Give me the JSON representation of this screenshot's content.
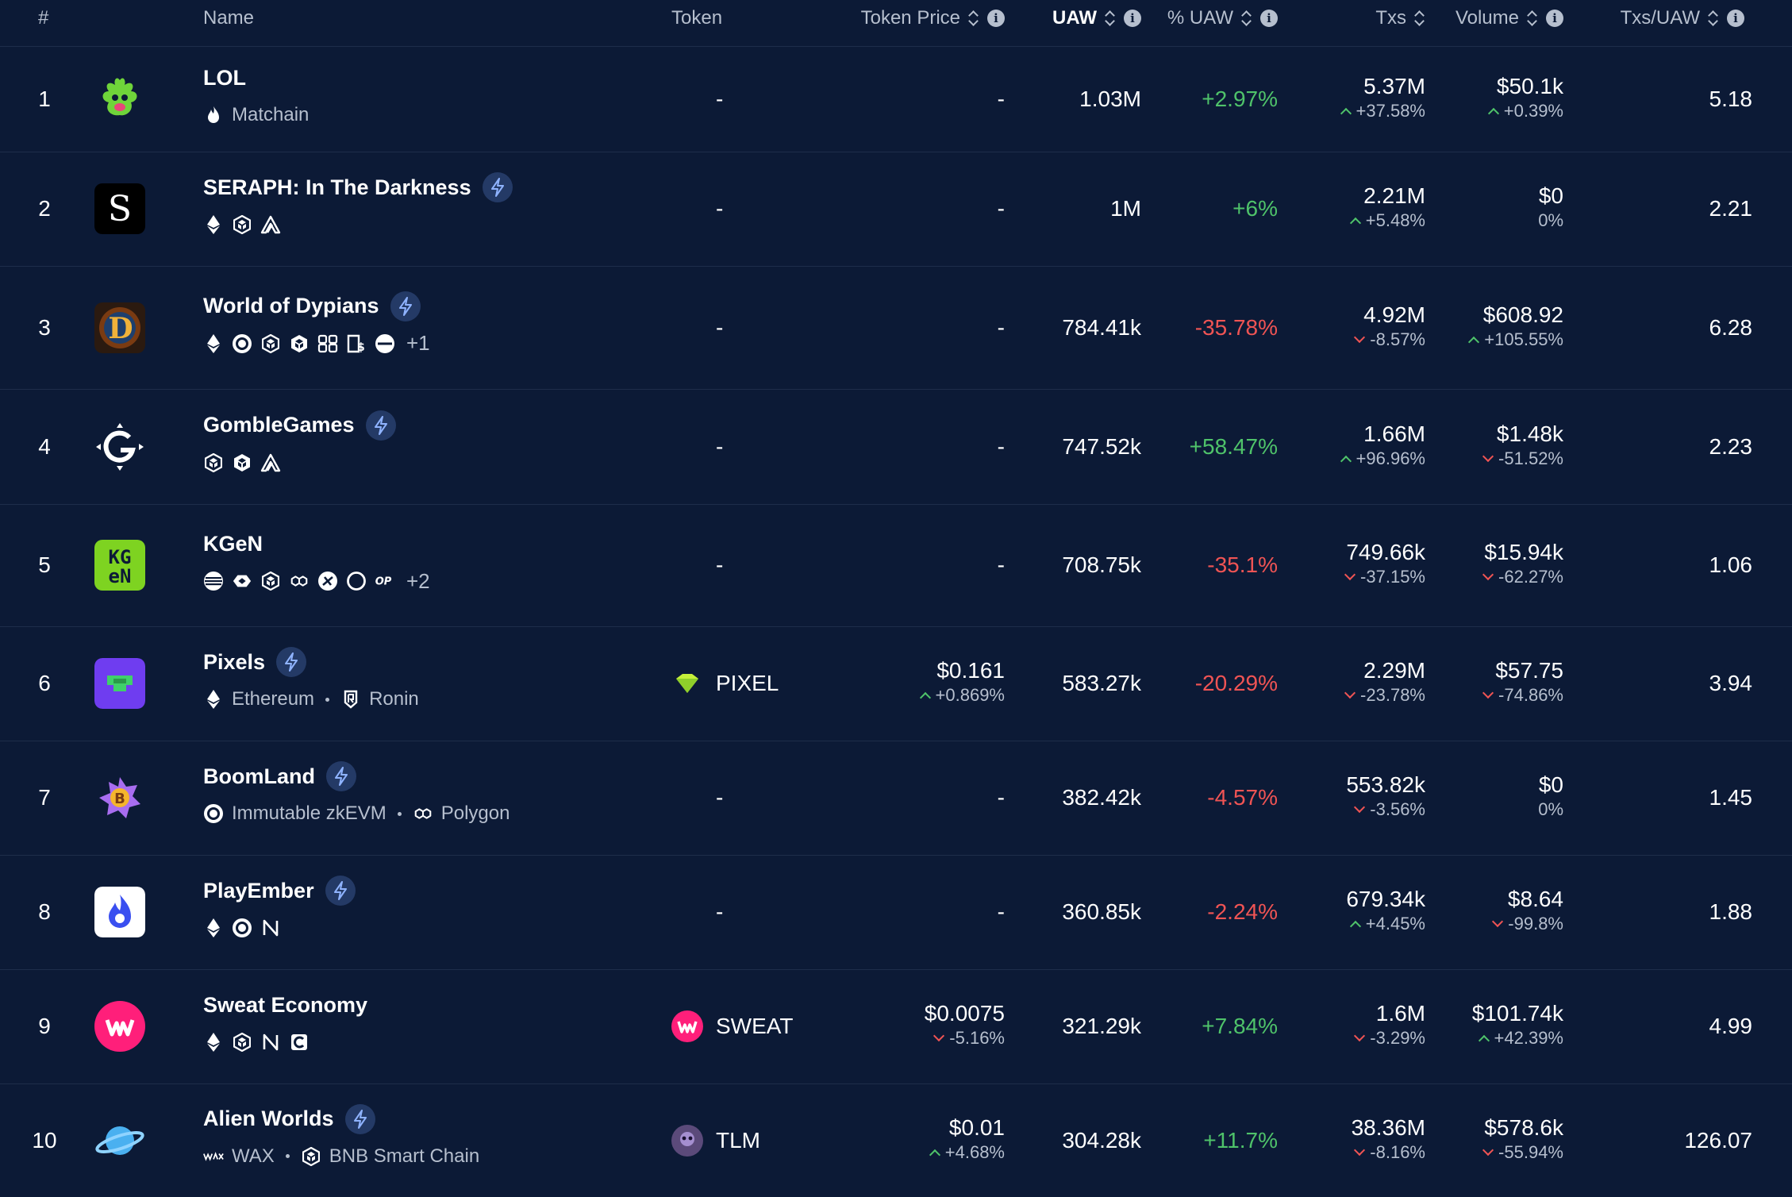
{
  "header": {
    "rank": "#",
    "name": "Name",
    "token": "Token",
    "token_price": "Token Price",
    "uaw": "UAW",
    "pct_uaw": "% UAW",
    "txs": "Txs",
    "volume": "Volume",
    "txs_uaw": "Txs/UAW",
    "info_glyph": "i"
  },
  "rows": [
    {
      "rank": "1",
      "name": "LOL",
      "featured": false,
      "chains": [
        "flame-icon"
      ],
      "chain_labels": [
        "Matchain"
      ],
      "more": "",
      "token": "",
      "token_dash": "-",
      "price": "",
      "price_dash": "-",
      "price_change": "",
      "uaw": "1.03M",
      "pct_uaw": "+2.97%",
      "txs": "5.37M",
      "txs_change": "+37.58%",
      "volume": "$50.1k",
      "volume_change": "+0.39%",
      "txs_uaw": "5.18"
    },
    {
      "rank": "2",
      "name": "SERAPH: In The Darkness",
      "featured": true,
      "chains": [
        "ethereum-icon",
        "bnb-icon",
        "arbitrum-icon"
      ],
      "chain_labels": [],
      "more": "",
      "token": "",
      "token_dash": "-",
      "price": "",
      "price_dash": "-",
      "price_change": "",
      "uaw": "1M",
      "pct_uaw": "+6%",
      "txs": "2.21M",
      "txs_change": "+5.48%",
      "volume": "$0",
      "volume_change": "0%",
      "txs_uaw": "2.21"
    },
    {
      "rank": "3",
      "name": "World of Dypians",
      "featured": true,
      "chains": [
        "ethereum-icon",
        "immutable-icon",
        "bnb-icon",
        "opbnb-icon",
        "skale-icon",
        "seieco-icon",
        "base-icon"
      ],
      "chain_labels": [],
      "more": "+1",
      "token": "",
      "token_dash": "-",
      "price": "",
      "price_dash": "-",
      "price_change": "",
      "uaw": "784.41k",
      "pct_uaw": "-35.78%",
      "txs": "4.92M",
      "txs_change": "-8.57%",
      "volume": "$608.92",
      "volume_change": "+105.55%",
      "txs_uaw": "6.28"
    },
    {
      "rank": "4",
      "name": "GombleGames",
      "featured": true,
      "chains": [
        "bnb-icon",
        "opbnb-icon",
        "arbitrum-icon"
      ],
      "chain_labels": [],
      "more": "",
      "token": "",
      "token_dash": "-",
      "price": "",
      "price_dash": "-",
      "price_change": "",
      "uaw": "747.52k",
      "pct_uaw": "+58.47%",
      "txs": "1.66M",
      "txs_change": "+96.96%",
      "volume": "$1.48k",
      "volume_change": "-51.52%",
      "txs_uaw": "2.23"
    },
    {
      "rank": "5",
      "name": "KGeN",
      "featured": false,
      "chains": [
        "aptos-icon",
        "kaia-icon",
        "bnb-icon",
        "polygon-icon",
        "zksync-icon",
        "circle-icon",
        "optimism-icon"
      ],
      "chain_labels": [],
      "more": "+2",
      "token": "",
      "token_dash": "-",
      "price": "",
      "price_dash": "-",
      "price_change": "",
      "uaw": "708.75k",
      "pct_uaw": "-35.1%",
      "txs": "749.66k",
      "txs_change": "-37.15%",
      "volume": "$15.94k",
      "volume_change": "-62.27%",
      "txs_uaw": "1.06"
    },
    {
      "rank": "6",
      "name": "Pixels",
      "featured": true,
      "chains": [
        "ethereum-icon",
        "ronin-icon"
      ],
      "chain_labels": [
        "Ethereum",
        "Ronin"
      ],
      "more": "",
      "token": "PIXEL",
      "token_dash": "",
      "price": "$0.161",
      "price_dash": "",
      "price_change": "+0.869%",
      "uaw": "583.27k",
      "pct_uaw": "-20.29%",
      "txs": "2.29M",
      "txs_change": "-23.78%",
      "volume": "$57.75",
      "volume_change": "-74.86%",
      "txs_uaw": "3.94"
    },
    {
      "rank": "7",
      "name": "BoomLand",
      "featured": true,
      "chains": [
        "immutable-icon",
        "polygon-icon"
      ],
      "chain_labels": [
        "Immutable zkEVM",
        "Polygon"
      ],
      "more": "",
      "token": "",
      "token_dash": "-",
      "price": "",
      "price_dash": "-",
      "price_change": "",
      "uaw": "382.42k",
      "pct_uaw": "-4.57%",
      "txs": "553.82k",
      "txs_change": "-3.56%",
      "volume": "$0",
      "volume_change": "0%",
      "txs_uaw": "1.45"
    },
    {
      "rank": "8",
      "name": "PlayEmber",
      "featured": true,
      "chains": [
        "ethereum-icon",
        "immutable-icon",
        "near-icon"
      ],
      "chain_labels": [],
      "more": "",
      "token": "",
      "token_dash": "-",
      "price": "",
      "price_dash": "-",
      "price_change": "",
      "uaw": "360.85k",
      "pct_uaw": "-2.24%",
      "txs": "679.34k",
      "txs_change": "+4.45%",
      "volume": "$8.64",
      "volume_change": "-99.8%",
      "txs_uaw": "1.88"
    },
    {
      "rank": "9",
      "name": "Sweat Economy",
      "featured": false,
      "chains": [
        "ethereum-icon",
        "bnb-icon",
        "near-icon",
        "core-icon"
      ],
      "chain_labels": [],
      "more": "",
      "token": "SWEAT",
      "token_dash": "",
      "price": "$0.0075",
      "price_dash": "",
      "price_change": "-5.16%",
      "uaw": "321.29k",
      "pct_uaw": "+7.84%",
      "txs": "1.6M",
      "txs_change": "-3.29%",
      "volume": "$101.74k",
      "volume_change": "+42.39%",
      "txs_uaw": "4.99"
    },
    {
      "rank": "10",
      "name": "Alien Worlds",
      "featured": true,
      "chains": [
        "wax-icon",
        "bnb-icon"
      ],
      "chain_labels": [
        "WAX",
        "BNB Smart Chain"
      ],
      "more": "",
      "token": "TLM",
      "token_dash": "",
      "price": "$0.01",
      "price_dash": "",
      "price_change": "+4.68%",
      "uaw": "304.28k",
      "pct_uaw": "+11.7%",
      "txs": "38.36M",
      "txs_change": "-8.16%",
      "volume": "$578.6k",
      "volume_change": "-55.94%",
      "txs_uaw": "126.07"
    }
  ],
  "colors": {
    "background": "#0c1a36",
    "positive": "#4fc36a",
    "negative": "#f05454",
    "muted": "#b6bfce",
    "featured_badge": "#243a66"
  }
}
